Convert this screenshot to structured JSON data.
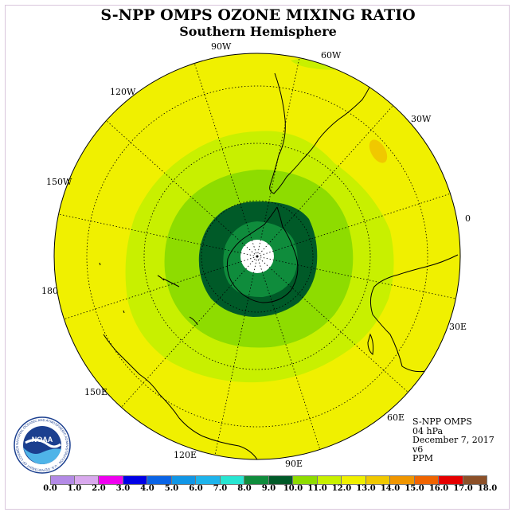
{
  "title": "S-NPP OMPS OZONE MIXING RATIO",
  "subtitle": "Southern Hemisphere",
  "longitude_labels": {
    "lon_90w": "90W",
    "lon_60w": "60W",
    "lon_30w": "30W",
    "lon_0": "0",
    "lon_30e": "30E",
    "lon_60e": "60E",
    "lon_90e": "90E",
    "lon_120e": "120E",
    "lon_150e": "150E",
    "lon_180": "180",
    "lon_150w": "150W",
    "lon_120w": "120W"
  },
  "info": {
    "instrument": "S-NPP OMPS",
    "pressure": "04 hPa",
    "date": "December 7, 2017",
    "version": "v6",
    "units": "PPM"
  },
  "colorbar": {
    "colors": [
      "#b38ae6",
      "#d9a9ee",
      "#f000f0",
      "#0000e6",
      "#0a64e6",
      "#1196e6",
      "#1eb4ec",
      "#28e6d2",
      "#0f8c3c",
      "#005a28",
      "#8edc00",
      "#c8f000",
      "#f0f000",
      "#f0c800",
      "#f09600",
      "#f06400",
      "#e60000",
      "#8c5028"
    ],
    "tick_labels": [
      "0.0",
      "1.0",
      "2.0",
      "3.0",
      "4.0",
      "5.0",
      "6.0",
      "7.0",
      "8.0",
      "9.0",
      "10.0",
      "11.0",
      "12.0",
      "13.0",
      "14.0",
      "15.0",
      "16.0",
      "17.0",
      "18.0"
    ]
  },
  "colors": {
    "background_field": "#f0f000",
    "band_11_12": "#c8f000",
    "band_10_11": "#8edc00",
    "band_9_10": "#005a28",
    "band_8_9": "#0f8c3c",
    "polar_missing": "#ffffff"
  },
  "logo": {
    "text": "NOAA",
    "ring_text": "NATIONAL OCEANIC AND ATMOSPHERIC ADMINISTRATION · U.S. DEPARTMENT OF COMMERCE"
  }
}
